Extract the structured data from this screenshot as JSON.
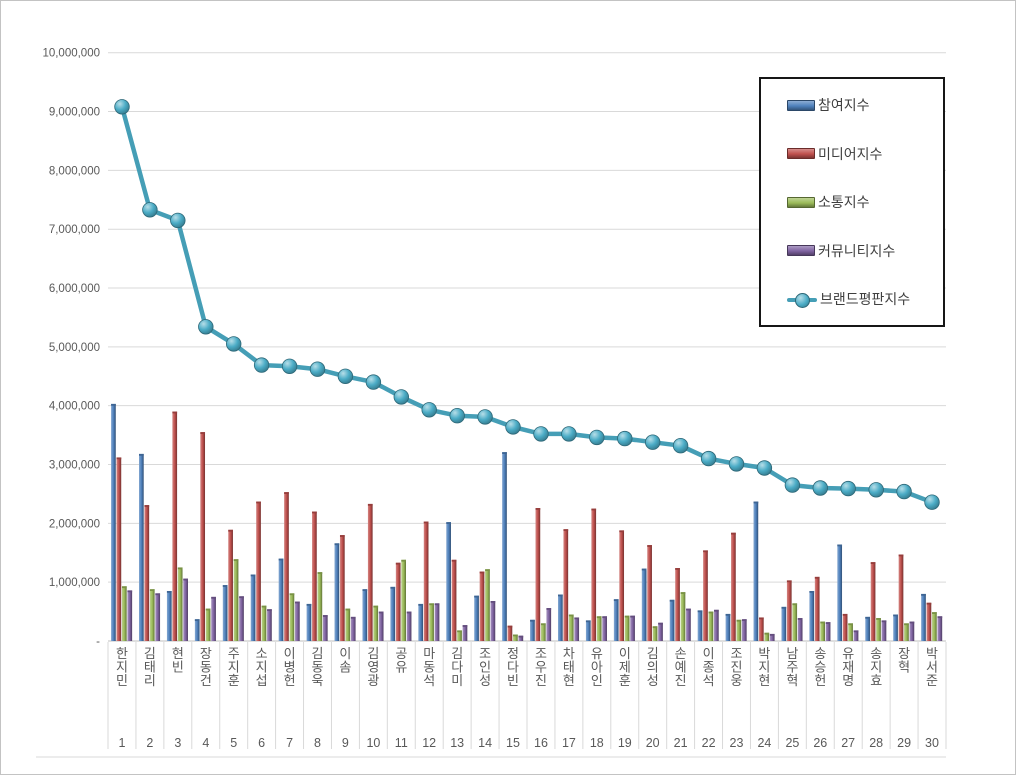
{
  "chart_data": {
    "type": "bar",
    "note_line_series": "브랜드평판지수 is rendered as a line with circular markers over grouped bars",
    "categories": [
      "한지민",
      "김태리",
      "현빈",
      "장동건",
      "주지훈",
      "소지섭",
      "이병헌",
      "김동욱",
      "이솜",
      "김영광",
      "공유",
      "마동석",
      "김다미",
      "조인성",
      "정다빈",
      "조우진",
      "차태현",
      "유아인",
      "이제훈",
      "김의성",
      "손예진",
      "이종석",
      "조진웅",
      "박지현",
      "남주혁",
      "송승헌",
      "유재명",
      "송지효",
      "장혁",
      "박서준"
    ],
    "ranks": [
      "1",
      "2",
      "3",
      "4",
      "5",
      "6",
      "7",
      "8",
      "9",
      "10",
      "11",
      "12",
      "13",
      "14",
      "15",
      "16",
      "17",
      "18",
      "19",
      "20",
      "21",
      "22",
      "23",
      "24",
      "25",
      "26",
      "27",
      "28",
      "29",
      "30"
    ],
    "series": [
      {
        "name": "참여지수",
        "type": "bar",
        "color": "#4F81BD",
        "values": [
          4030000,
          3180000,
          850000,
          370000,
          950000,
          1130000,
          1400000,
          630000,
          1660000,
          880000,
          920000,
          630000,
          2020000,
          770000,
          3210000,
          360000,
          790000,
          350000,
          710000,
          1230000,
          700000,
          520000,
          460000,
          2370000,
          580000,
          850000,
          1640000,
          410000,
          450000,
          800000
        ]
      },
      {
        "name": "미디어지수",
        "type": "bar",
        "color": "#C0504D",
        "values": [
          3120000,
          2310000,
          3900000,
          3550000,
          1890000,
          2370000,
          2530000,
          2200000,
          1800000,
          2330000,
          1330000,
          2030000,
          1380000,
          1180000,
          260000,
          2260000,
          1900000,
          2250000,
          1880000,
          1630000,
          1240000,
          1540000,
          1840000,
          400000,
          1030000,
          1090000,
          460000,
          1340000,
          1470000,
          650000
        ]
      },
      {
        "name": "소통지수",
        "type": "bar",
        "color": "#9BBB59",
        "values": [
          930000,
          880000,
          1250000,
          550000,
          1390000,
          600000,
          810000,
          1170000,
          550000,
          600000,
          1380000,
          640000,
          180000,
          1220000,
          110000,
          300000,
          450000,
          420000,
          430000,
          250000,
          830000,
          500000,
          360000,
          140000,
          640000,
          330000,
          300000,
          390000,
          300000,
          490000
        ]
      },
      {
        "name": "커뮤니티지수",
        "type": "bar",
        "color": "#8064A2",
        "values": [
          860000,
          810000,
          1060000,
          750000,
          760000,
          540000,
          670000,
          440000,
          410000,
          500000,
          500000,
          640000,
          270000,
          680000,
          90000,
          560000,
          400000,
          420000,
          430000,
          310000,
          550000,
          530000,
          370000,
          120000,
          390000,
          320000,
          180000,
          350000,
          330000,
          420000
        ]
      },
      {
        "name": "브랜드평판지수",
        "type": "line",
        "color": "#4BACC6",
        "values": [
          9080000,
          7330000,
          7150000,
          5340000,
          5050000,
          4690000,
          4670000,
          4620000,
          4500000,
          4400000,
          4150000,
          3930000,
          3830000,
          3810000,
          3640000,
          3520000,
          3520000,
          3460000,
          3440000,
          3380000,
          3320000,
          3100000,
          3010000,
          2940000,
          2650000,
          2600000,
          2590000,
          2570000,
          2540000,
          2360000
        ]
      }
    ],
    "title": "",
    "xlabel": "",
    "ylabel": "",
    "ylim": [
      0,
      10000000
    ],
    "ytick_interval": 1000000,
    "ytick_labels": [
      "-",
      "1,000,000",
      "2,000,000",
      "3,000,000",
      "4,000,000",
      "5,000,000",
      "6,000,000",
      "7,000,000",
      "8,000,000",
      "9,000,000",
      "10,000,000"
    ],
    "grid": true,
    "legend_position": "top-right",
    "axis_text_color": "#595959",
    "gridline_color": "#d9d9d9"
  }
}
